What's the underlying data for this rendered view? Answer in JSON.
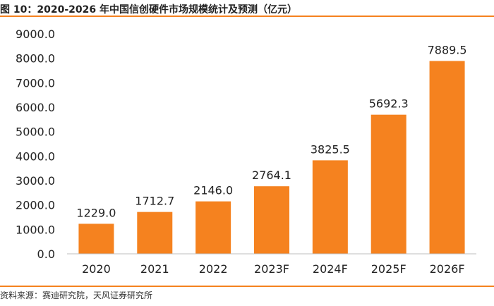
{
  "header": {
    "title": "图 10：2020-2026 年中国信创硬件市场规模统计及预测（亿元）"
  },
  "footer": {
    "source": "资料来源：赛迪研究院，天风证券研究所"
  },
  "colors": {
    "bar": "#F5821F",
    "rule": "#F5821F",
    "axis": "#BFBFBF",
    "text": "#222222"
  },
  "chart_data": {
    "type": "bar",
    "title": "",
    "xlabel": "",
    "ylabel": "",
    "categories": [
      "2020",
      "2021",
      "2022",
      "2023F",
      "2024F",
      "2025F",
      "2026F"
    ],
    "values": [
      1229.0,
      1712.7,
      2146.0,
      2764.1,
      3825.5,
      5692.3,
      7889.5
    ],
    "value_labels": [
      "1229.0",
      "1712.7",
      "2146.0",
      "2764.1",
      "3825.5",
      "5692.3",
      "7889.5"
    ],
    "ylim": [
      0,
      9000
    ],
    "yticks": [
      "0.0",
      "1000.0",
      "2000.0",
      "3000.0",
      "4000.0",
      "5000.0",
      "6000.0",
      "7000.0",
      "8000.0",
      "9000.0"
    ],
    "grid": false,
    "legend": "none"
  }
}
